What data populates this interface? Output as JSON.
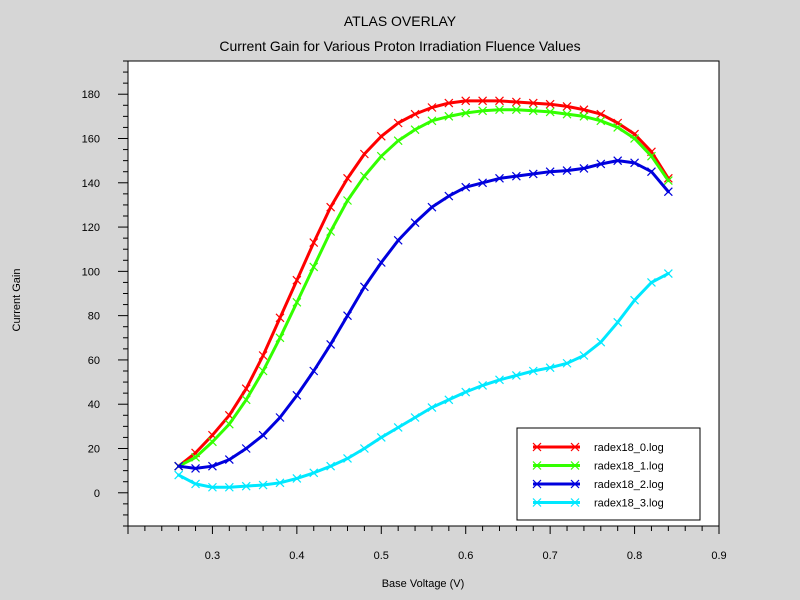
{
  "chart_data": {
    "type": "line",
    "title": "ATLAS OVERLAY",
    "subtitle": "Current Gain for Various Proton Irradiation Fluence Values",
    "xlabel": "Base Voltage (V)",
    "ylabel": "Current Gain",
    "xlim": [
      0.2,
      0.9
    ],
    "ylim": [
      -15,
      195
    ],
    "x_ticks": [
      "0.3",
      "0.4",
      "0.5",
      "0.6",
      "0.7",
      "0.8",
      "0.9"
    ],
    "y_ticks": [
      "0",
      "20",
      "40",
      "60",
      "80",
      "100",
      "120",
      "140",
      "160",
      "180"
    ],
    "grid": false,
    "legend_position": "bottom-right",
    "series": [
      {
        "name": "radex18_0.log",
        "color": "#ff0000",
        "x": [
          0.26,
          0.28,
          0.3,
          0.32,
          0.34,
          0.36,
          0.38,
          0.4,
          0.42,
          0.44,
          0.46,
          0.48,
          0.5,
          0.52,
          0.54,
          0.56,
          0.58,
          0.6,
          0.62,
          0.64,
          0.66,
          0.68,
          0.7,
          0.72,
          0.74,
          0.76,
          0.78,
          0.8,
          0.82,
          0.84
        ],
        "y": [
          12,
          18,
          26,
          35,
          47,
          62,
          79,
          96,
          113,
          129,
          142,
          153,
          161,
          167,
          171,
          174,
          176,
          177,
          177,
          177,
          176.5,
          176,
          175.5,
          174.5,
          173,
          171,
          167,
          162,
          154,
          142
        ]
      },
      {
        "name": "radex18_1.log",
        "color": "#33ff00",
        "x": [
          0.26,
          0.28,
          0.3,
          0.32,
          0.34,
          0.36,
          0.38,
          0.4,
          0.42,
          0.44,
          0.46,
          0.48,
          0.5,
          0.52,
          0.54,
          0.56,
          0.58,
          0.6,
          0.62,
          0.64,
          0.66,
          0.68,
          0.7,
          0.72,
          0.74,
          0.76,
          0.78,
          0.8,
          0.82,
          0.84
        ],
        "y": [
          12,
          16,
          23,
          31,
          42,
          55,
          70,
          86,
          102,
          118,
          132,
          143,
          152,
          159,
          164,
          168,
          170,
          171.5,
          172.5,
          173,
          173,
          172.5,
          172,
          171,
          170,
          168,
          165,
          160,
          152,
          141
        ]
      },
      {
        "name": "radex18_2.log",
        "color": "#0000dd",
        "x": [
          0.26,
          0.28,
          0.3,
          0.32,
          0.34,
          0.36,
          0.38,
          0.4,
          0.42,
          0.44,
          0.46,
          0.48,
          0.5,
          0.52,
          0.54,
          0.56,
          0.58,
          0.6,
          0.62,
          0.64,
          0.66,
          0.68,
          0.7,
          0.72,
          0.74,
          0.76,
          0.78,
          0.8,
          0.82,
          0.84
        ],
        "y": [
          12,
          11,
          12,
          15,
          20,
          26,
          34,
          44,
          55,
          67,
          80,
          93,
          104,
          114,
          122,
          129,
          134,
          138,
          140,
          142,
          143,
          144,
          145,
          145.5,
          146.5,
          148.5,
          150,
          149,
          145,
          136
        ]
      },
      {
        "name": "radex18_3.log",
        "color": "#00e8ff",
        "x": [
          0.26,
          0.28,
          0.3,
          0.32,
          0.34,
          0.36,
          0.38,
          0.4,
          0.42,
          0.44,
          0.46,
          0.48,
          0.5,
          0.52,
          0.54,
          0.56,
          0.58,
          0.6,
          0.62,
          0.64,
          0.66,
          0.68,
          0.7,
          0.72,
          0.74,
          0.76,
          0.78,
          0.8,
          0.82,
          0.84
        ],
        "y": [
          8,
          4,
          2.5,
          2.5,
          3,
          3.5,
          4.5,
          6.5,
          9,
          12,
          15.5,
          20,
          25,
          29.5,
          34,
          38.5,
          42,
          45.5,
          48.5,
          51,
          53,
          55,
          56.5,
          58.5,
          62,
          68,
          77,
          87,
          95,
          99
        ]
      }
    ]
  }
}
